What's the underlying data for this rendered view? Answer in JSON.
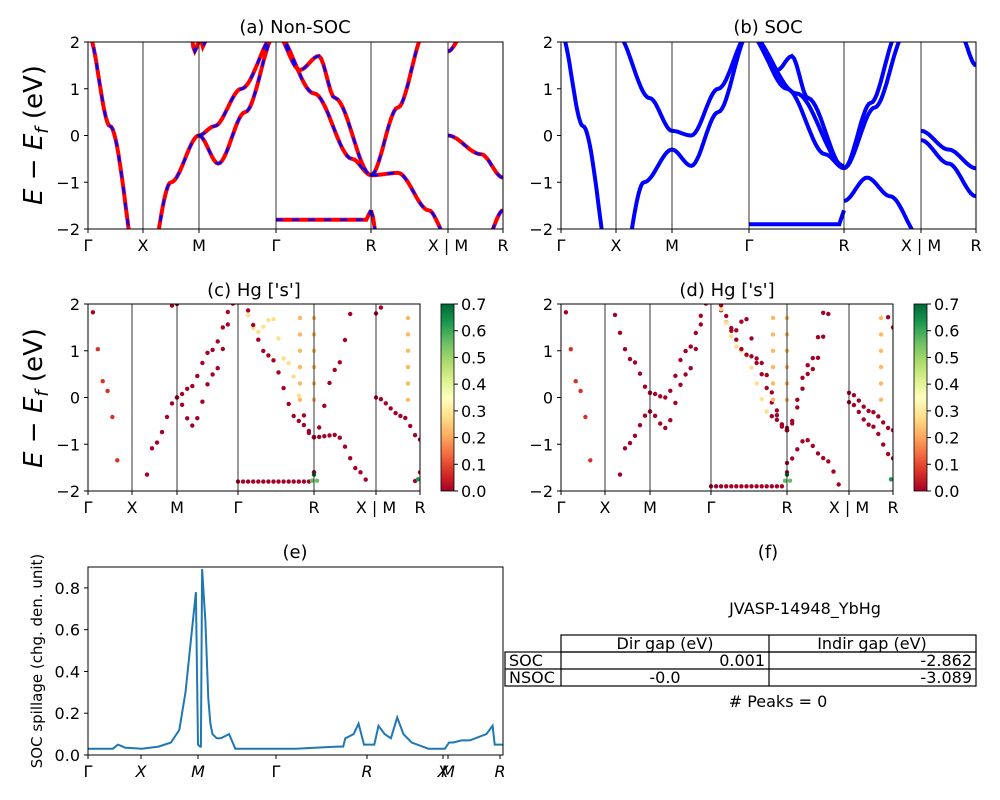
{
  "chart_data": [
    {
      "id": "a",
      "type": "line",
      "title": "(a) Non-SOC",
      "ylabel": "E − E_f (eV)",
      "ylim": [
        -2,
        2
      ],
      "yticks": [
        "−2",
        "−1",
        "0",
        "1",
        "2"
      ],
      "xtick_labels": [
        "Γ",
        "X",
        "M",
        "Γ",
        "R",
        "X | M",
        "R"
      ],
      "series_colors": [
        "#ff0000",
        "#0000ff"
      ]
    },
    {
      "id": "b",
      "type": "line",
      "title": "(b) SOC",
      "ylim": [
        -2,
        2
      ],
      "yticks": [
        "−2",
        "−1",
        "0",
        "1",
        "2"
      ],
      "xtick_labels": [
        "Γ",
        "X",
        "M",
        "Γ",
        "R",
        "X | M",
        "R"
      ],
      "series_colors": [
        "#0000ff"
      ]
    },
    {
      "id": "c",
      "type": "scatter",
      "title": "(c)  Hg ['s']",
      "ylabel": "E − E_f (eV)",
      "ylim": [
        -2,
        2
      ],
      "yticks": [
        "−2",
        "−1",
        "0",
        "1",
        "2"
      ],
      "xtick_labels": [
        "Γ",
        "X",
        "M",
        "Γ",
        "R",
        "X | M",
        "R"
      ],
      "colorbar": {
        "min": 0.0,
        "max": 0.7,
        "ticks": [
          "0.0",
          "0.1",
          "0.2",
          "0.3",
          "0.4",
          "0.5",
          "0.6",
          "0.7"
        ]
      }
    },
    {
      "id": "d",
      "type": "scatter",
      "title": "(d) Hg ['s']",
      "ylim": [
        -2,
        2
      ],
      "yticks": [
        "−2",
        "−1",
        "0",
        "1",
        "2"
      ],
      "xtick_labels": [
        "Γ",
        "X",
        "M",
        "Γ",
        "R",
        "X | M",
        "R"
      ],
      "colorbar": {
        "min": 0.0,
        "max": 0.7,
        "ticks": [
          "0.0",
          "0.1",
          "0.2",
          "0.3",
          "0.4",
          "0.5",
          "0.6",
          "0.7"
        ]
      }
    },
    {
      "id": "e",
      "type": "line",
      "title": "(e)",
      "ylabel": "SOC spillage (chg. den. unit)",
      "ylim": [
        0,
        0.9
      ],
      "yticks": [
        "0.0",
        "0.2",
        "0.4",
        "0.6",
        "0.8"
      ],
      "xtick_labels": [
        "Γ",
        "X",
        "M",
        "Γ",
        "R",
        "X",
        "M",
        "R"
      ],
      "series": [
        {
          "x": [
            0.0,
            0.06,
            0.072,
            0.09,
            0.13,
            0.17,
            0.2,
            0.22,
            0.235,
            0.26,
            0.265,
            0.27,
            0.272,
            0.275,
            0.283,
            0.29,
            0.295,
            0.3,
            0.31,
            0.32,
            0.34,
            0.355,
            0.36,
            0.4,
            0.5,
            0.6,
            0.615,
            0.62,
            0.64,
            0.652,
            0.665,
            0.67,
            0.69,
            0.7,
            0.715,
            0.73,
            0.745,
            0.76,
            0.78,
            0.82,
            0.86,
            0.87,
            0.88,
            0.9,
            0.92,
            0.96,
            0.975,
            0.98,
            1.0
          ],
          "y": [
            0.03,
            0.03,
            0.05,
            0.035,
            0.03,
            0.04,
            0.06,
            0.12,
            0.3,
            0.78,
            0.05,
            0.04,
            0.04,
            0.89,
            0.64,
            0.27,
            0.15,
            0.1,
            0.08,
            0.08,
            0.1,
            0.03,
            0.03,
            0.03,
            0.03,
            0.04,
            0.04,
            0.08,
            0.1,
            0.15,
            0.05,
            0.05,
            0.05,
            0.14,
            0.1,
            0.08,
            0.18,
            0.1,
            0.06,
            0.03,
            0.03,
            0.06,
            0.06,
            0.07,
            0.07,
            0.1,
            0.14,
            0.05,
            0.05
          ]
        }
      ]
    }
  ],
  "panel_f": {
    "title": "(f)",
    "material": "JVASP-14948_YbHg",
    "col_headers": [
      "Dir gap (eV)",
      "Indir gap (eV)"
    ],
    "rows": [
      {
        "label": "SOC",
        "dir": "0.001",
        "indir": "-2.862"
      },
      {
        "label": "NSOC",
        "dir": "-0.0",
        "indir": "-3.089"
      }
    ],
    "peaks": "# Peaks = 0"
  }
}
